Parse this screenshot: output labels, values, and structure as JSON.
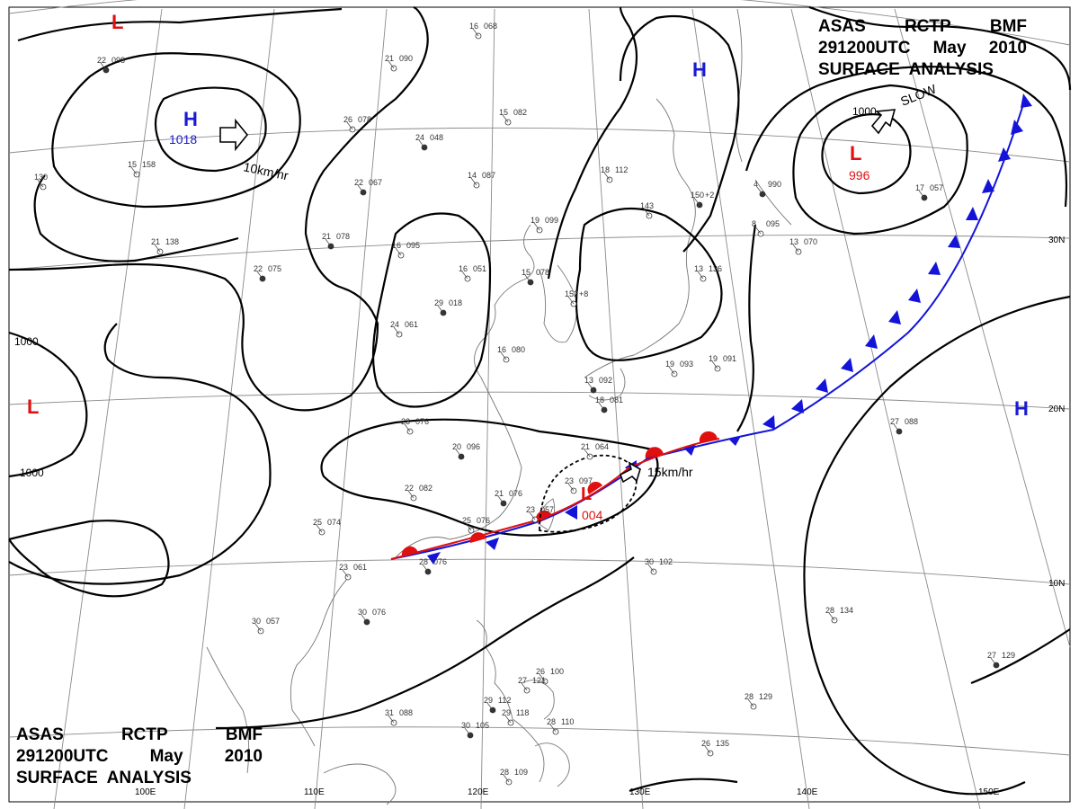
{
  "title": {
    "line1": [
      "ASAS",
      "RCTP",
      "BMF"
    ],
    "line2": [
      "291200UTC",
      "May",
      "2010"
    ],
    "line3": "SURFACE  ANALYSIS"
  },
  "colors": {
    "isobar": "#000000",
    "high": "#1a1ad6",
    "low": "#e01010",
    "cold_front": "#1414d8",
    "warm_front": "#e01010",
    "grid": "#8a8a8a",
    "coast": "#777777"
  },
  "longitude_labels": [
    "110E",
    "120E",
    "130E",
    "140E",
    "150E",
    "100E"
  ],
  "latitude_labels": [
    "30N",
    "20N",
    "10N"
  ],
  "pressure_centers": [
    {
      "type": "H",
      "value": "1018",
      "id": "high-northwest"
    },
    {
      "type": "H",
      "value": "",
      "id": "high-north"
    },
    {
      "type": "H",
      "value": "",
      "id": "high-east"
    },
    {
      "type": "L",
      "value": "996",
      "id": "low-northeast"
    },
    {
      "type": "L",
      "value": "004",
      "id": "low-taiwan"
    },
    {
      "type": "L",
      "value": "",
      "id": "low-west"
    },
    {
      "type": "L",
      "value": "",
      "id": "low-topleft"
    }
  ],
  "isobar_labels": [
    "1000",
    "1000",
    "1000"
  ],
  "motion_labels": {
    "nw": "10km/hr",
    "tw": "15km/hr",
    "ne": "SLOW"
  },
  "stations": [
    {
      "t": "22",
      "p": "098"
    },
    {
      "t": "21",
      "p": "090"
    },
    {
      "t": "16",
      "p": "068"
    },
    {
      "t": "24",
      "p": "048"
    },
    {
      "t": "15",
      "p": "082"
    },
    {
      "t": "26",
      "p": "078"
    },
    {
      "t": "22",
      "p": "067"
    },
    {
      "t": "14",
      "p": "087"
    },
    {
      "t": "18",
      "p": "112"
    },
    {
      "t": "150",
      "p": "+2"
    },
    {
      "t": "19",
      "p": "099"
    },
    {
      "t": "143",
      "p": ""
    },
    {
      "t": "21",
      "p": "078"
    },
    {
      "t": "16",
      "p": "095"
    },
    {
      "t": "16",
      "p": "051"
    },
    {
      "t": "15",
      "p": "078"
    },
    {
      "t": "152",
      "p": "+8"
    },
    {
      "t": "13",
      "p": "136"
    },
    {
      "t": "29",
      "p": "018"
    },
    {
      "t": "24",
      "p": "061"
    },
    {
      "t": "16",
      "p": "080"
    },
    {
      "t": "22",
      "p": "075"
    },
    {
      "t": "21",
      "p": "138"
    },
    {
      "t": "23",
      "p": "076"
    },
    {
      "t": "20",
      "p": "096"
    },
    {
      "t": "22",
      "p": "082"
    },
    {
      "t": "21",
      "p": "064"
    },
    {
      "t": "21",
      "p": "076"
    },
    {
      "t": "25",
      "p": "076"
    },
    {
      "t": "25",
      "p": "074"
    },
    {
      "t": "28",
      "p": "076"
    },
    {
      "t": "23",
      "p": "061"
    },
    {
      "t": "30",
      "p": "057"
    },
    {
      "t": "30",
      "p": "076"
    },
    {
      "t": "30",
      "p": "102"
    },
    {
      "t": "28",
      "p": "134"
    },
    {
      "t": "27",
      "p": "129"
    },
    {
      "t": "28",
      "p": "129"
    },
    {
      "t": "31",
      "p": "088"
    },
    {
      "t": "30",
      "p": "105"
    },
    {
      "t": "28",
      "p": "109"
    },
    {
      "t": "26",
      "p": "135"
    },
    {
      "t": "29",
      "p": "112"
    },
    {
      "t": "26",
      "p": "100"
    },
    {
      "t": "27",
      "p": "121"
    },
    {
      "t": "17",
      "p": "057"
    },
    {
      "t": "13",
      "p": "070"
    },
    {
      "t": "8",
      "p": "095"
    },
    {
      "t": "4",
      "p": "990"
    },
    {
      "t": "19",
      "p": "093"
    },
    {
      "t": "19",
      "p": "091"
    },
    {
      "t": "13",
      "p": "092"
    },
    {
      "t": "15",
      "p": "158"
    },
    {
      "t": "130",
      "p": ""
    },
    {
      "t": "18",
      "p": "081"
    },
    {
      "t": "23",
      "p": "097"
    },
    {
      "t": "23",
      "p": "057"
    },
    {
      "t": "27",
      "p": "088"
    },
    {
      "t": "29",
      "p": "118"
    },
    {
      "t": "28",
      "p": "110"
    }
  ]
}
